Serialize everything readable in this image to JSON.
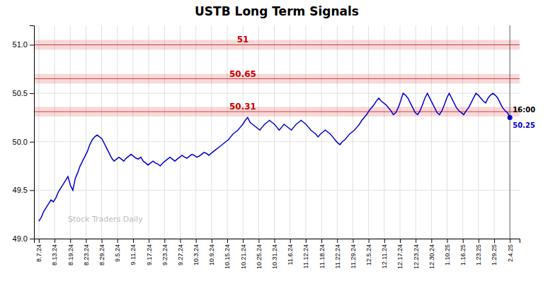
{
  "chart_data": {
    "type": "line",
    "title": "USTB Long Term Signals",
    "watermark": "Stock Traders Daily",
    "color": "#0000cc",
    "grid": true,
    "hlines": [
      {
        "y": 51.0,
        "label": "51",
        "color": "#cc0000",
        "band": 0.05
      },
      {
        "y": 50.65,
        "label": "50.65",
        "color": "#cc0000",
        "band": 0.05
      },
      {
        "y": 50.31,
        "label": "50.31",
        "color": "#cc0000",
        "band": 0.05
      }
    ],
    "last_time": "16:00",
    "last_value": 50.25,
    "xlim": [
      -2,
      198
    ],
    "xticks": [
      {
        "value": 0,
        "label": "8.7.24"
      },
      {
        "value": 6.4667,
        "label": "8.13.24"
      },
      {
        "value": 12.9333,
        "label": "8.19.24"
      },
      {
        "value": 19.4,
        "label": "8.23.24"
      },
      {
        "value": 25.8667,
        "label": "8.29.24"
      },
      {
        "value": 32.3333,
        "label": "9.5.24"
      },
      {
        "value": 38.8,
        "label": "9.11.24"
      },
      {
        "value": 45.2667,
        "label": "9.17.24"
      },
      {
        "value": 51.7333,
        "label": "9.23.24"
      },
      {
        "value": 58.2,
        "label": "9.27.24"
      },
      {
        "value": 64.6667,
        "label": "10.3.24"
      },
      {
        "value": 71.1333,
        "label": "10.9.24"
      },
      {
        "value": 77.6,
        "label": "10.15.24"
      },
      {
        "value": 84.0667,
        "label": "10.21.24"
      },
      {
        "value": 90.5333,
        "label": "10.25.24"
      },
      {
        "value": 97,
        "label": "10.31.24"
      },
      {
        "value": 103.4667,
        "label": "11.6.24"
      },
      {
        "value": 109.9333,
        "label": "11.12.24"
      },
      {
        "value": 116.4,
        "label": "11.18.24"
      },
      {
        "value": 122.8667,
        "label": "11.22.24"
      },
      {
        "value": 129.3333,
        "label": "11.29.24"
      },
      {
        "value": 135.8,
        "label": "12.5.24"
      },
      {
        "value": 142.2667,
        "label": "12.11.24"
      },
      {
        "value": 148.7333,
        "label": "12.17.24"
      },
      {
        "value": 155.2,
        "label": "12.23.24"
      },
      {
        "value": 161.6667,
        "label": "12.30.24"
      },
      {
        "value": 168.1333,
        "label": "1.10.25"
      },
      {
        "value": 174.6,
        "label": "1.16.25"
      },
      {
        "value": 181.0667,
        "label": "1.23.25"
      },
      {
        "value": 187.5333,
        "label": "1.29.25"
      },
      {
        "value": 194,
        "label": "2.4.25"
      }
    ],
    "ylim": [
      49.0,
      51.2
    ],
    "yticks": [
      {
        "value": 49.0,
        "label": "49.0"
      },
      49.5,
      {
        "value": 50.0,
        "label": "50.0"
      },
      50.5,
      {
        "value": 51.0,
        "label": "51.0"
      }
    ],
    "values": [
      49.18,
      49.22,
      49.28,
      49.32,
      49.36,
      49.4,
      49.38,
      49.42,
      49.48,
      49.52,
      49.56,
      49.6,
      49.64,
      49.55,
      49.5,
      49.62,
      49.68,
      49.75,
      49.8,
      49.85,
      49.9,
      49.97,
      50.02,
      50.05,
      50.07,
      50.05,
      50.03,
      49.98,
      49.93,
      49.88,
      49.83,
      49.8,
      49.82,
      49.84,
      49.82,
      49.8,
      49.83,
      49.85,
      49.87,
      49.85,
      49.83,
      49.82,
      49.84,
      49.8,
      49.78,
      49.76,
      49.78,
      49.8,
      49.78,
      49.77,
      49.75,
      49.78,
      49.8,
      49.82,
      49.84,
      49.82,
      49.8,
      49.82,
      49.84,
      49.86,
      49.84,
      49.83,
      49.85,
      49.87,
      49.86,
      49.84,
      49.85,
      49.87,
      49.89,
      49.88,
      49.86,
      49.88,
      49.9,
      49.92,
      49.94,
      49.96,
      49.98,
      50.0,
      50.02,
      50.05,
      50.08,
      50.1,
      50.12,
      50.15,
      50.18,
      50.22,
      50.25,
      50.2,
      50.18,
      50.16,
      50.14,
      50.12,
      50.15,
      50.18,
      50.2,
      50.22,
      50.2,
      50.18,
      50.15,
      50.12,
      50.15,
      50.18,
      50.16,
      50.14,
      50.12,
      50.15,
      50.18,
      50.2,
      50.22,
      50.2,
      50.18,
      50.15,
      50.12,
      50.1,
      50.08,
      50.05,
      50.08,
      50.1,
      50.12,
      50.1,
      50.08,
      50.05,
      50.02,
      49.99,
      49.97,
      50.0,
      50.02,
      50.05,
      50.08,
      50.1,
      50.12,
      50.15,
      50.18,
      50.22,
      50.25,
      50.28,
      50.32,
      50.35,
      50.38,
      50.42,
      50.45,
      50.42,
      50.4,
      50.38,
      50.35,
      50.32,
      50.28,
      50.3,
      50.35,
      50.42,
      50.5,
      50.48,
      50.45,
      50.4,
      50.35,
      50.3,
      50.28,
      50.32,
      50.38,
      50.45,
      50.5,
      50.45,
      50.4,
      50.35,
      50.3,
      50.28,
      50.32,
      50.38,
      50.45,
      50.5,
      50.45,
      50.4,
      50.35,
      50.32,
      50.3,
      50.28,
      50.32,
      50.35,
      50.4,
      50.45,
      50.5,
      50.48,
      50.45,
      50.42,
      50.4,
      50.45,
      50.48,
      50.5,
      50.48,
      50.45,
      50.4,
      50.35,
      50.32,
      50.3,
      50.25
    ]
  }
}
